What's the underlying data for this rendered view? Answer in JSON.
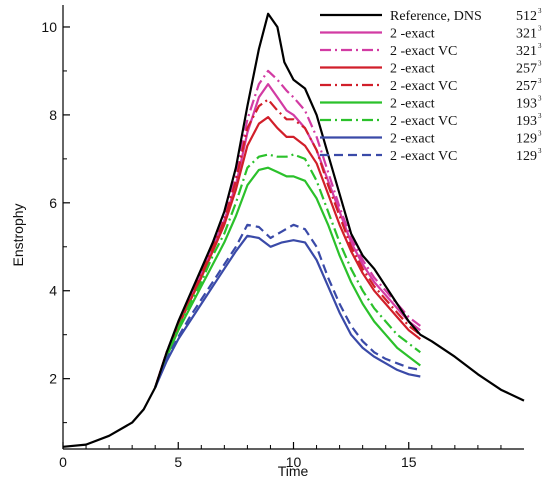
{
  "chart_data": {
    "type": "line",
    "title": "",
    "xlabel": "Time",
    "ylabel": "Enstrophy",
    "xlim": [
      0,
      20
    ],
    "ylim": [
      0.4,
      10.5
    ],
    "xticks": [
      0,
      5,
      10,
      15
    ],
    "xtick_labels": [
      "0",
      "5",
      "10",
      "15"
    ],
    "yticks": [
      2,
      4,
      6,
      8,
      10
    ],
    "ytick_labels": [
      "2",
      "4",
      "6",
      "8",
      "10"
    ],
    "grid": false,
    "legend_position": "top-right",
    "series": [
      {
        "name": "Reference, DNS",
        "grid_label": "512",
        "sup": "3",
        "color": "#000000",
        "dash": "solid",
        "x": [
          0,
          1,
          2,
          3,
          3.5,
          4,
          4.5,
          5,
          5.5,
          6,
          6.5,
          7,
          7.5,
          8,
          8.5,
          8.9,
          9.3,
          9.6,
          10,
          10.5,
          11,
          11.5,
          12,
          12.5,
          13,
          13.5,
          14,
          14.5,
          15,
          15.5,
          16,
          17,
          18,
          19,
          20
        ],
        "y": [
          0.45,
          0.5,
          0.7,
          1.0,
          1.3,
          1.8,
          2.6,
          3.3,
          3.9,
          4.5,
          5.1,
          5.8,
          6.8,
          8.2,
          9.5,
          10.3,
          10.0,
          9.2,
          8.8,
          8.6,
          8.0,
          7.1,
          6.2,
          5.3,
          4.8,
          4.5,
          4.1,
          3.7,
          3.3,
          3.0,
          2.85,
          2.5,
          2.1,
          1.75,
          1.5
        ]
      },
      {
        "name": "2 -exact",
        "grid_label": "321",
        "sup": "3",
        "color": "#d23ba3",
        "dash": "solid",
        "x": [
          4,
          4.5,
          5,
          5.5,
          6,
          6.5,
          7,
          7.5,
          8,
          8.5,
          8.9,
          9.3,
          9.7,
          10,
          10.5,
          11,
          11.5,
          12,
          12.5,
          13,
          13.5,
          14,
          14.5,
          15,
          15.5
        ],
        "y": [
          1.8,
          2.6,
          3.2,
          3.8,
          4.4,
          5.0,
          5.6,
          6.4,
          7.6,
          8.4,
          8.7,
          8.4,
          8.1,
          8.0,
          7.7,
          7.2,
          6.5,
          5.8,
          5.1,
          4.6,
          4.2,
          3.9,
          3.6,
          3.3,
          3.1
        ]
      },
      {
        "name": "2 -exact VC",
        "grid_label": "321",
        "sup": "3",
        "color": "#d23ba3",
        "dash": "dashdot",
        "x": [
          4,
          4.5,
          5,
          5.5,
          6,
          6.5,
          7,
          7.5,
          8,
          8.5,
          8.9,
          9.3,
          9.7,
          10,
          10.5,
          11,
          11.5,
          12,
          12.5,
          13,
          13.5,
          14,
          14.5,
          15,
          15.5
        ],
        "y": [
          1.8,
          2.6,
          3.25,
          3.85,
          4.45,
          5.1,
          5.7,
          6.6,
          7.9,
          8.7,
          9.0,
          8.8,
          8.55,
          8.4,
          8.1,
          7.5,
          6.7,
          5.9,
          5.2,
          4.7,
          4.3,
          4.0,
          3.7,
          3.4,
          3.2
        ]
      },
      {
        "name": "2 -exact",
        "grid_label": "257",
        "sup": "3",
        "color": "#d11f2a",
        "dash": "solid",
        "x": [
          4,
          4.5,
          5,
          5.5,
          6,
          6.5,
          7,
          7.5,
          8,
          8.5,
          8.9,
          9.3,
          9.7,
          10,
          10.5,
          11,
          11.5,
          12,
          12.5,
          13,
          13.5,
          14,
          14.5,
          15,
          15.5
        ],
        "y": [
          1.8,
          2.6,
          3.2,
          3.75,
          4.3,
          4.9,
          5.5,
          6.3,
          7.3,
          7.8,
          7.95,
          7.7,
          7.5,
          7.5,
          7.3,
          6.9,
          6.2,
          5.5,
          4.9,
          4.4,
          4.0,
          3.7,
          3.4,
          3.1,
          2.9
        ]
      },
      {
        "name": "2 -exact VC",
        "grid_label": "257",
        "sup": "3",
        "color": "#d11f2a",
        "dash": "dashdot",
        "x": [
          4,
          4.5,
          5,
          5.5,
          6,
          6.5,
          7,
          7.5,
          8,
          8.5,
          8.9,
          9.3,
          9.7,
          10,
          10.5,
          11,
          11.5,
          12,
          12.5,
          13,
          13.5,
          14,
          14.5,
          15,
          15.5
        ],
        "y": [
          1.8,
          2.6,
          3.25,
          3.8,
          4.4,
          5.0,
          5.6,
          6.5,
          7.7,
          8.2,
          8.35,
          8.1,
          7.9,
          7.9,
          7.7,
          7.2,
          6.4,
          5.7,
          5.0,
          4.5,
          4.1,
          3.8,
          3.5,
          3.2,
          3.0
        ]
      },
      {
        "name": "2 -exact",
        "grid_label": "193",
        "sup": "3",
        "color": "#2bc12b",
        "dash": "solid",
        "x": [
          4,
          4.5,
          5,
          5.5,
          6,
          6.5,
          7,
          7.5,
          8,
          8.5,
          8.9,
          9.3,
          9.7,
          10,
          10.5,
          11,
          11.5,
          12,
          12.5,
          13,
          13.5,
          14,
          14.5,
          15,
          15.5
        ],
        "y": [
          1.8,
          2.5,
          3.1,
          3.6,
          4.1,
          4.6,
          5.1,
          5.7,
          6.4,
          6.75,
          6.8,
          6.7,
          6.6,
          6.6,
          6.5,
          6.1,
          5.5,
          4.8,
          4.2,
          3.7,
          3.3,
          3.0,
          2.7,
          2.5,
          2.3
        ]
      },
      {
        "name": "2 -exact VC",
        "grid_label": "193",
        "sup": "3",
        "color": "#2bc12b",
        "dash": "dashdot",
        "x": [
          4,
          4.5,
          5,
          5.5,
          6,
          6.5,
          7,
          7.5,
          8,
          8.5,
          8.9,
          9.3,
          9.7,
          10,
          10.5,
          11,
          11.5,
          12,
          12.5,
          13,
          13.5,
          14,
          14.5,
          15,
          15.5
        ],
        "y": [
          1.8,
          2.55,
          3.15,
          3.7,
          4.2,
          4.8,
          5.3,
          6.0,
          6.8,
          7.05,
          7.1,
          7.05,
          7.05,
          7.1,
          7.0,
          6.5,
          5.8,
          5.1,
          4.5,
          4.0,
          3.6,
          3.3,
          3.0,
          2.8,
          2.6
        ]
      },
      {
        "name": "2 -exact",
        "grid_label": "129",
        "sup": "3",
        "color": "#3a4aa8",
        "dash": "solid",
        "x": [
          4,
          4.5,
          5,
          5.5,
          6,
          6.5,
          7,
          7.5,
          8,
          8.5,
          9,
          9.5,
          10,
          10.5,
          11,
          11.5,
          12,
          12.5,
          13,
          13.5,
          14,
          14.5,
          15,
          15.5
        ],
        "y": [
          1.8,
          2.4,
          2.9,
          3.3,
          3.7,
          4.1,
          4.5,
          4.9,
          5.25,
          5.2,
          5.0,
          5.1,
          5.15,
          5.1,
          4.7,
          4.1,
          3.5,
          3.0,
          2.7,
          2.5,
          2.35,
          2.2,
          2.1,
          2.05
        ]
      },
      {
        "name": "2 -exact VC",
        "grid_label": "129",
        "sup": "3",
        "color": "#3a4aa8",
        "dash": "dashed",
        "x": [
          4,
          4.5,
          5,
          5.5,
          6,
          6.5,
          7,
          7.5,
          8,
          8.5,
          9,
          9.5,
          10,
          10.5,
          11,
          11.5,
          12,
          12.5,
          13,
          13.5,
          14,
          14.5,
          15,
          15.5
        ],
        "y": [
          1.8,
          2.45,
          2.95,
          3.4,
          3.8,
          4.2,
          4.6,
          5.0,
          5.5,
          5.45,
          5.2,
          5.35,
          5.5,
          5.4,
          5.0,
          4.3,
          3.7,
          3.2,
          2.85,
          2.6,
          2.45,
          2.35,
          2.25,
          2.2
        ]
      }
    ]
  }
}
